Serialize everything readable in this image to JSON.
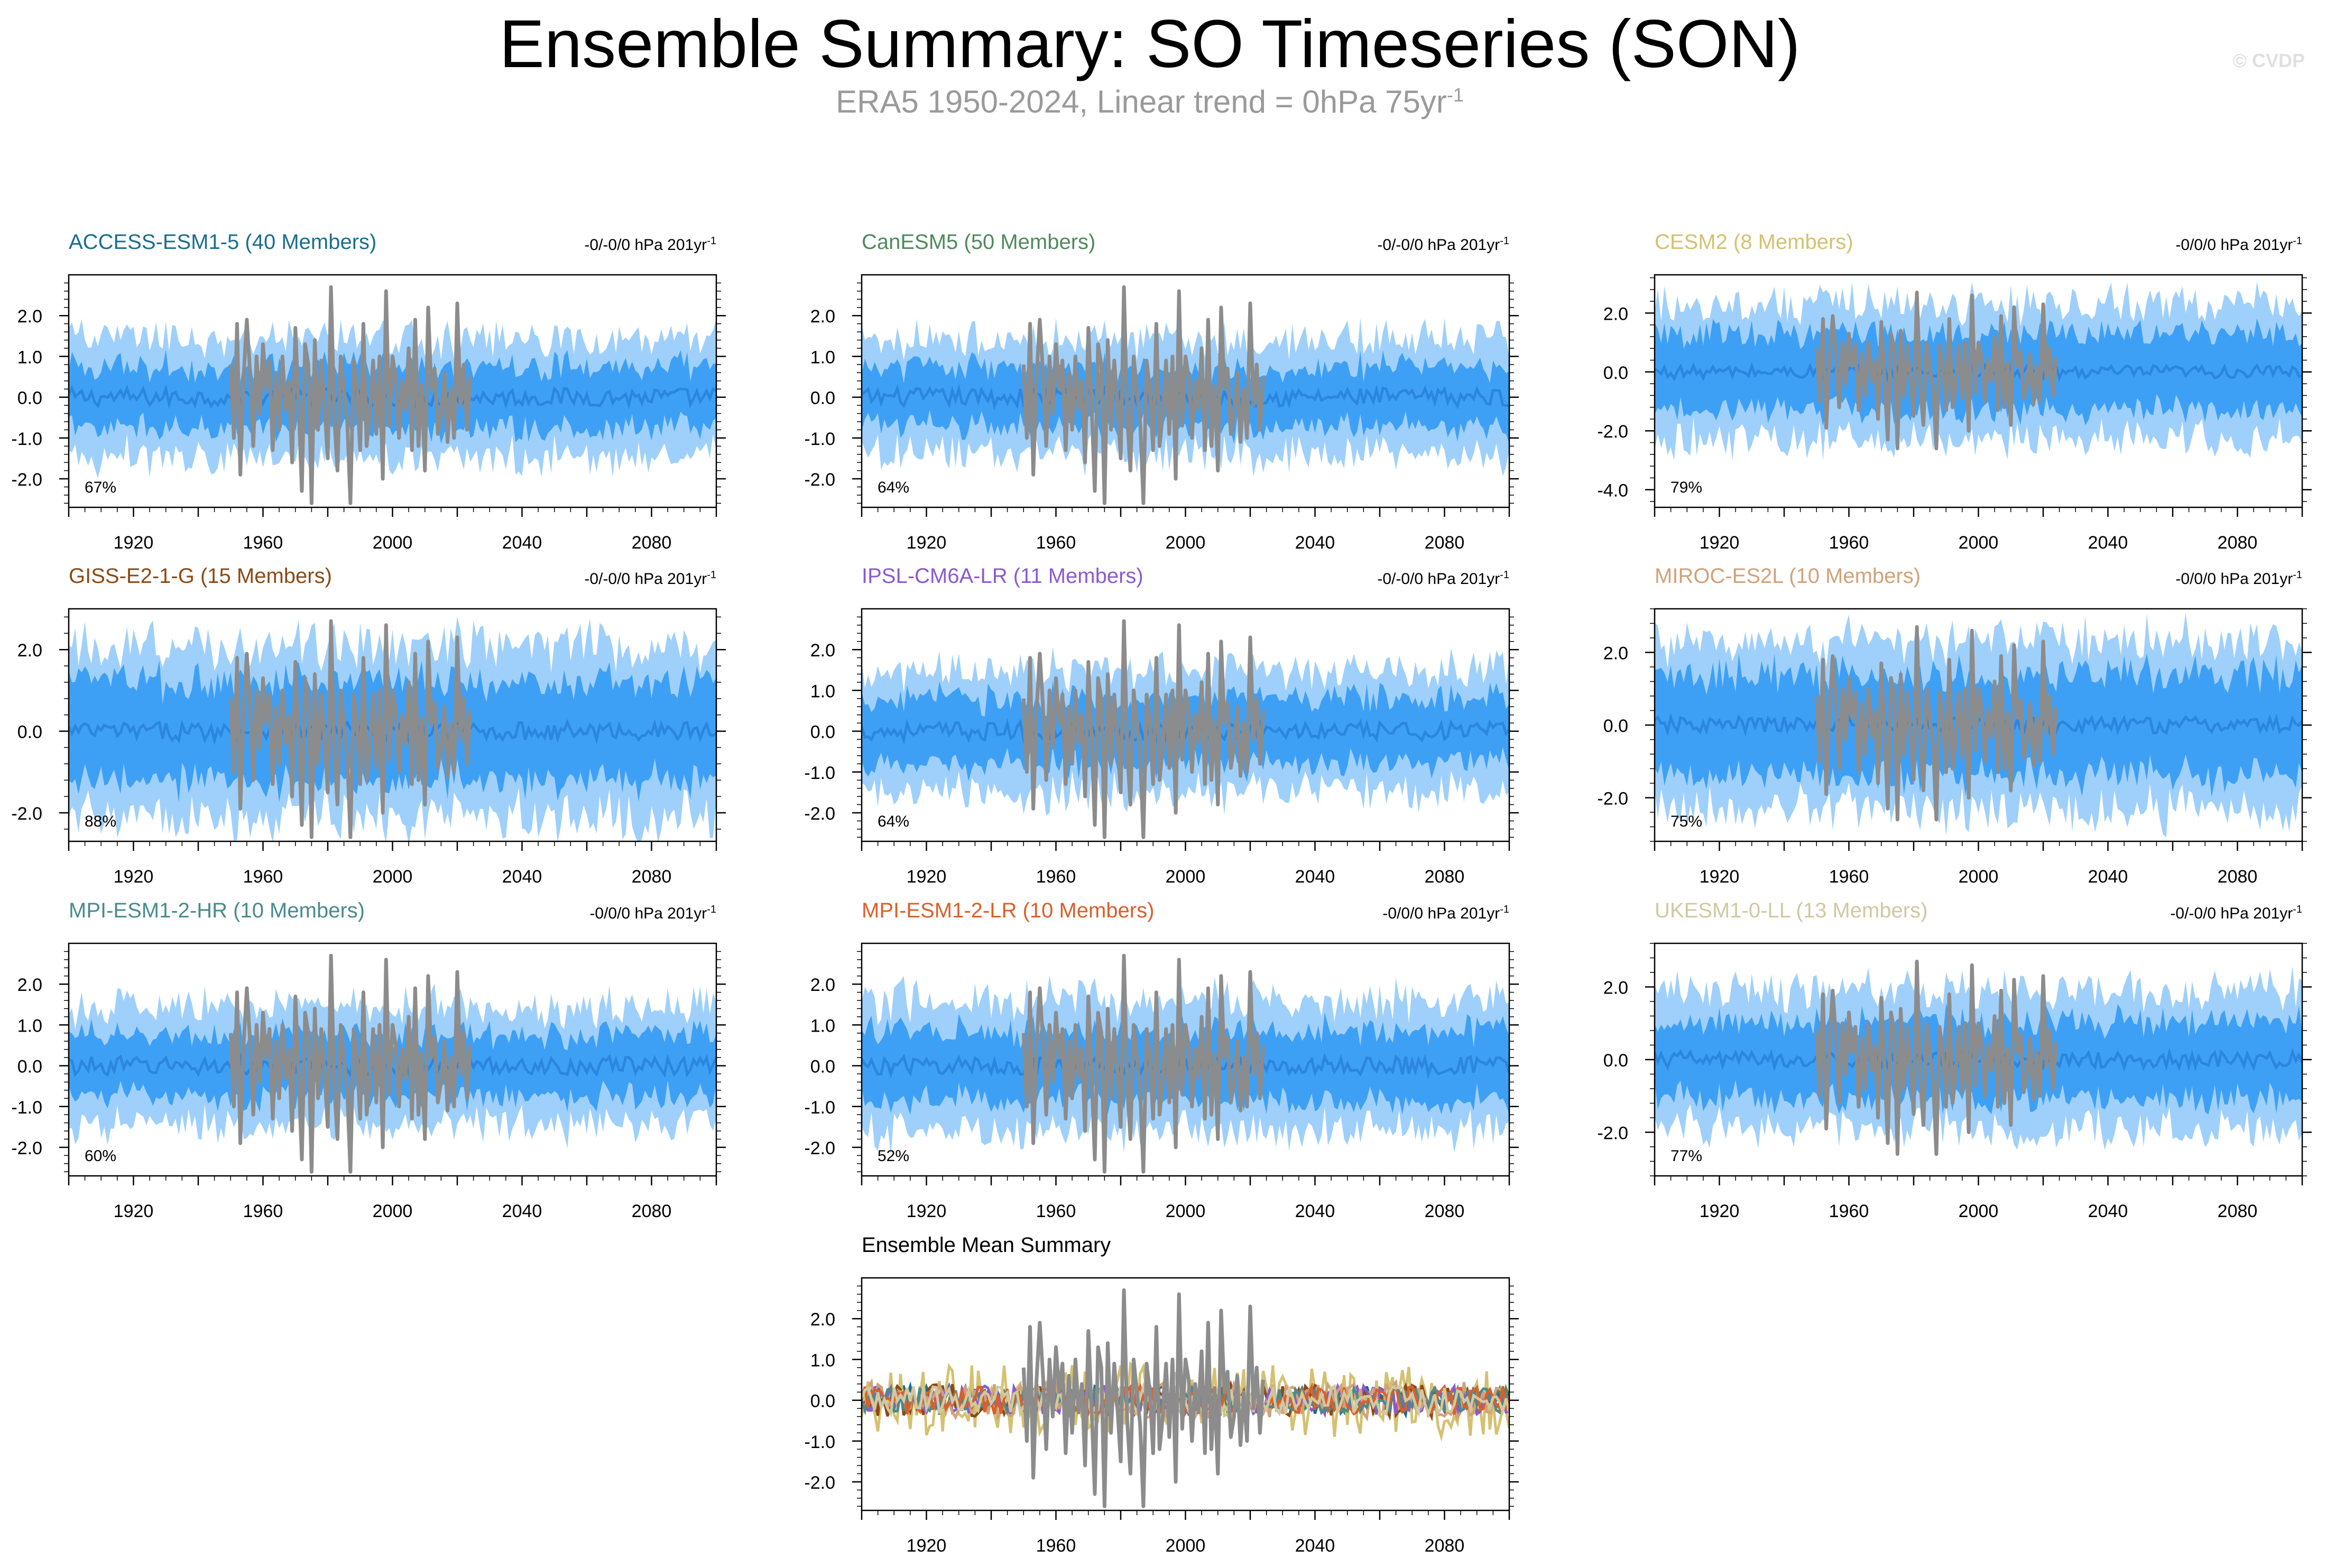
{
  "header": {
    "title": "Ensemble Summary: SO Timeseries (SON)",
    "subtitle": "ERA5 1950-2024, Linear trend = 0hPa 75yr",
    "subtitle_sup": "-1",
    "watermark": "© CVDP"
  },
  "colors": {
    "band_outer": "#9fd0fb",
    "band_inner": "#3ea0f5",
    "ensemble_mean_line": "#2b86e0",
    "observations": "#8c8c8c",
    "axis": "#000000"
  },
  "chart_data": [
    {
      "type": "area",
      "title": "ACCESS-ESM1-5 (40 Members)",
      "title_color": "#1a6e8f",
      "trend": "-0/-0/0 hPa 201yr",
      "trend_sup": "-1",
      "percent": "67%",
      "ylim": [
        -2.7,
        3.0
      ],
      "yticks": [
        "2.0",
        "1.0",
        "0.0",
        "-1.0",
        "-2.0"
      ],
      "ytick_values": [
        2,
        1,
        0,
        -1,
        -2
      ],
      "xlim": [
        1900,
        2100
      ],
      "xticks": [
        "1920",
        "1960",
        "2000",
        "2040",
        "2080"
      ],
      "outer_halfwidth": 1.45,
      "inner_halfwidth": 0.75
    },
    {
      "type": "area",
      "title": "CanESM5 (50 Members)",
      "title_color": "#4e8a5c",
      "trend": "-0/-0/0 hPa 201yr",
      "trend_sup": "-1",
      "percent": "64%",
      "ylim": [
        -2.7,
        3.0
      ],
      "yticks": [
        "2.0",
        "1.0",
        "0.0",
        "-1.0",
        "-2.0"
      ],
      "ytick_values": [
        2,
        1,
        0,
        -1,
        -2
      ],
      "xlim": [
        1900,
        2100
      ],
      "xticks": [
        "1920",
        "1960",
        "2000",
        "2040",
        "2080"
      ],
      "outer_halfwidth": 1.4,
      "inner_halfwidth": 0.72
    },
    {
      "type": "area",
      "title": "CESM2 (8 Members)",
      "title_color": "#d4c171",
      "trend": "-0/0/0 hPa 201yr",
      "trend_sup": "-1",
      "percent": "79%",
      "ylim": [
        -4.6,
        3.3
      ],
      "yticks": [
        "2.0",
        "0.0",
        "-2.0",
        "-4.0"
      ],
      "ytick_values": [
        2,
        0,
        -2,
        -4
      ],
      "xlim": [
        1900,
        2100
      ],
      "xticks": [
        "1920",
        "1960",
        "2000",
        "2040",
        "2080"
      ],
      "outer_halfwidth": 2.3,
      "inner_halfwidth": 1.3
    },
    {
      "type": "area",
      "title": "GISS-E2-1-G (15 Members)",
      "title_color": "#8a4a16",
      "trend": "-0/-0/0 hPa 201yr",
      "trend_sup": "-1",
      "percent": "88%",
      "ylim": [
        -2.7,
        3.0
      ],
      "yticks": [
        "2.0",
        "0.0",
        "-2.0"
      ],
      "ytick_values": [
        2,
        0,
        -2
      ],
      "xlim": [
        1900,
        2100
      ],
      "xticks": [
        "1920",
        "1960",
        "2000",
        "2040",
        "2080"
      ],
      "outer_halfwidth": 2.1,
      "inner_halfwidth": 1.2
    },
    {
      "type": "area",
      "title": "IPSL-CM6A-LR (11 Members)",
      "title_color": "#8a5ad0",
      "trend": "-0/-0/0 hPa 201yr",
      "trend_sup": "-1",
      "percent": "64%",
      "ylim": [
        -2.7,
        3.0
      ],
      "yticks": [
        "2.0",
        "1.0",
        "0.0",
        "-1.0",
        "-2.0"
      ],
      "ytick_values": [
        2,
        1,
        0,
        -1,
        -2
      ],
      "xlim": [
        1900,
        2100
      ],
      "xticks": [
        "1920",
        "1960",
        "2000",
        "2040",
        "2080"
      ],
      "outer_halfwidth": 1.5,
      "inner_halfwidth": 0.8
    },
    {
      "type": "area",
      "title": "MIROC-ES2L (10 Members)",
      "title_color": "#d0a27a",
      "trend": "-0/0/0 hPa 201yr",
      "trend_sup": "-1",
      "percent": "75%",
      "ylim": [
        -3.2,
        3.2
      ],
      "yticks": [
        "2.0",
        "0.0",
        "-2.0"
      ],
      "ytick_values": [
        2,
        0,
        -2
      ],
      "xlim": [
        1900,
        2100
      ],
      "xticks": [
        "1920",
        "1960",
        "2000",
        "2040",
        "2080"
      ],
      "outer_halfwidth": 2.3,
      "inner_halfwidth": 1.4
    },
    {
      "type": "area",
      "title": "MPI-ESM1-2-HR (10 Members)",
      "title_color": "#4a8a8e",
      "trend": "-0/0/0 hPa 201yr",
      "trend_sup": "-1",
      "percent": "60%",
      "ylim": [
        -2.7,
        3.0
      ],
      "yticks": [
        "2.0",
        "1.0",
        "0.0",
        "-1.0",
        "-2.0"
      ],
      "ytick_values": [
        2,
        1,
        0,
        -1,
        -2
      ],
      "xlim": [
        1900,
        2100
      ],
      "xticks": [
        "1920",
        "1960",
        "2000",
        "2040",
        "2080"
      ],
      "outer_halfwidth": 1.45,
      "inner_halfwidth": 0.75
    },
    {
      "type": "area",
      "title": "MPI-ESM1-2-LR (10 Members)",
      "title_color": "#d8602c",
      "trend": "-0/0/0 hPa 201yr",
      "trend_sup": "-1",
      "percent": "52%",
      "ylim": [
        -2.7,
        3.0
      ],
      "yticks": [
        "2.0",
        "1.0",
        "0.0",
        "-1.0",
        "-2.0"
      ],
      "ytick_values": [
        2,
        1,
        0,
        -1,
        -2
      ],
      "xlim": [
        1900,
        2100
      ],
      "xticks": [
        "1920",
        "1960",
        "2000",
        "2040",
        "2080"
      ],
      "outer_halfwidth": 1.6,
      "inner_halfwidth": 0.85
    },
    {
      "type": "area",
      "title": "UKESM1-0-LL (13 Members)",
      "title_color": "#d2c8a0",
      "trend": "-0/-0/0 hPa 201yr",
      "trend_sup": "-1",
      "percent": "77%",
      "ylim": [
        -3.2,
        3.2
      ],
      "yticks": [
        "2.0",
        "0.0",
        "-2.0"
      ],
      "ytick_values": [
        2,
        0,
        -2
      ],
      "xlim": [
        1900,
        2100
      ],
      "xticks": [
        "1920",
        "1960",
        "2000",
        "2040",
        "2080"
      ],
      "outer_halfwidth": 1.9,
      "inner_halfwidth": 1.05
    },
    {
      "type": "line",
      "title": "Ensemble Mean Summary",
      "title_color": "#000000",
      "ylim": [
        -2.7,
        3.0
      ],
      "yticks": [
        "2.0",
        "1.0",
        "0.0",
        "-1.0",
        "-2.0"
      ],
      "ytick_values": [
        2,
        1,
        0,
        -1,
        -2
      ],
      "xlim": [
        1900,
        2100
      ],
      "xticks": [
        "1920",
        "1960",
        "2000",
        "2040",
        "2080"
      ],
      "series": [
        {
          "color": "#1a6e8f",
          "amplitude": 0.35
        },
        {
          "color": "#4e8a5c",
          "amplitude": 0.3
        },
        {
          "color": "#d4c171",
          "amplitude": 0.9
        },
        {
          "color": "#8a4a16",
          "amplitude": 0.4
        },
        {
          "color": "#8a5ad0",
          "amplitude": 0.35
        },
        {
          "color": "#d0a27a",
          "amplitude": 0.45
        },
        {
          "color": "#4a8a8e",
          "amplitude": 0.3
        },
        {
          "color": "#d8602c",
          "amplitude": 0.35
        },
        {
          "color": "#d2c8a0",
          "amplitude": 0.35
        }
      ]
    }
  ],
  "observations": {
    "name": "ERA5",
    "years": [
      1950,
      1951,
      1952,
      1953,
      1954,
      1955,
      1956,
      1957,
      1958,
      1959,
      1960,
      1961,
      1962,
      1963,
      1964,
      1965,
      1966,
      1967,
      1968,
      1969,
      1970,
      1971,
      1972,
      1973,
      1974,
      1975,
      1976,
      1977,
      1978,
      1979,
      1980,
      1981,
      1982,
      1983,
      1984,
      1985,
      1986,
      1987,
      1988,
      1989,
      1990,
      1991,
      1992,
      1993,
      1994,
      1995,
      1996,
      1997,
      1998,
      1999,
      2000,
      2001,
      2002,
      2003,
      2004,
      2005,
      2006,
      2007,
      2008,
      2009,
      2010,
      2011,
      2012,
      2013,
      2014,
      2015,
      2016,
      2017,
      2018,
      2019,
      2020,
      2021,
      2022,
      2023,
      2024
    ],
    "values": [
      0.8,
      -1.0,
      1.8,
      -1.9,
      0.5,
      1.9,
      0.6,
      -1.2,
      1.0,
      -0.4,
      1.3,
      0.2,
      0.9,
      -1.3,
      0.6,
      -0.8,
      1.0,
      -0.3,
      0.4,
      -1.6,
      1.7,
      -0.2,
      -2.3,
      1.3,
      0.8,
      -2.6,
      1.4,
      -0.8,
      0.9,
      -0.2,
      -1.5,
      2.7,
      -0.5,
      -1.8,
      1.0,
      0.2,
      -0.6,
      -2.6,
      0.9,
      0.2,
      -1.3,
      1.8,
      -1.2,
      -0.4,
      0.9,
      -0.9,
      1.0,
      -2.0,
      2.6,
      -0.7,
      1.0,
      0.5,
      -1.0,
      0.4,
      -0.3,
      1.2,
      -1.3,
      1.9,
      -1.2,
      0.3,
      -1.8,
      2.2,
      0.2,
      0.7,
      -0.9,
      -0.4,
      0.6,
      -1.1,
      0.2,
      -1.0,
      2.3,
      -0.2,
      0.8,
      -0.8,
      0.5
    ]
  }
}
